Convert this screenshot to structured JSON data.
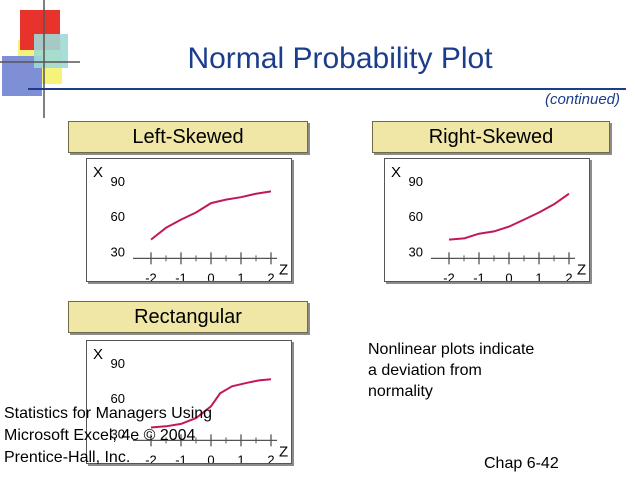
{
  "title": "Normal Probability Plot",
  "subtitle": "(continued)",
  "note_lines": [
    "Nonlinear plots indicate",
    "a deviation from",
    "normality"
  ],
  "footer_lines": [
    "Statistics for Managers Using",
    "Microsoft Excel, 4e © 2004",
    "Prentice-Hall, Inc."
  ],
  "chap": "Chap 6-42",
  "colors": {
    "title": "#1c3d8c",
    "label_fill": "#f0e6a6",
    "curve": "#c2185b"
  },
  "logo": "overlapping-squares-logo",
  "chart_data": [
    {
      "type": "line",
      "title": "Left-Skewed",
      "xlabel": "Z",
      "ylabel": "X",
      "xticks": [
        "-2",
        "-1",
        "0",
        "1",
        "2"
      ],
      "yticks": [
        "90",
        "60",
        "30"
      ],
      "xlim": [
        -2.8,
        2.4
      ],
      "ylim": [
        15,
        100
      ],
      "grid": false,
      "series": [
        {
          "x": [
            -2,
            -1.5,
            -1,
            -0.5,
            0,
            0.5,
            1,
            1.5,
            2
          ],
          "y": [
            40,
            50,
            57,
            63,
            71,
            74,
            76,
            79,
            81
          ]
        }
      ]
    },
    {
      "type": "line",
      "title": "Right-Skewed",
      "xlabel": "Z",
      "ylabel": "X",
      "xticks": [
        "-2",
        "-1",
        "0",
        "1",
        "2"
      ],
      "yticks": [
        "90",
        "60",
        "30"
      ],
      "xlim": [
        -2.8,
        2.4
      ],
      "ylim": [
        15,
        100
      ],
      "grid": false,
      "series": [
        {
          "x": [
            -2,
            -1.5,
            -1,
            -0.5,
            0,
            0.5,
            1,
            1.5,
            2
          ],
          "y": [
            40,
            41,
            45,
            47,
            51,
            57,
            63,
            70,
            79
          ]
        }
      ]
    },
    {
      "type": "line",
      "title": "Rectangular",
      "xlabel": "Z",
      "ylabel": "X",
      "xticks": [
        "-2",
        "-1",
        "0",
        "1",
        "2"
      ],
      "yticks": [
        "90",
        "60",
        "30"
      ],
      "xlim": [
        -2.8,
        2.4
      ],
      "ylim": [
        15,
        100
      ],
      "grid": false,
      "series": [
        {
          "x": [
            -2,
            -1.5,
            -1,
            -0.5,
            0,
            0.3,
            0.7,
            1.2,
            1.6,
            2
          ],
          "y": [
            35,
            36,
            38,
            43,
            53,
            64,
            70,
            73,
            75,
            76
          ]
        }
      ]
    }
  ]
}
